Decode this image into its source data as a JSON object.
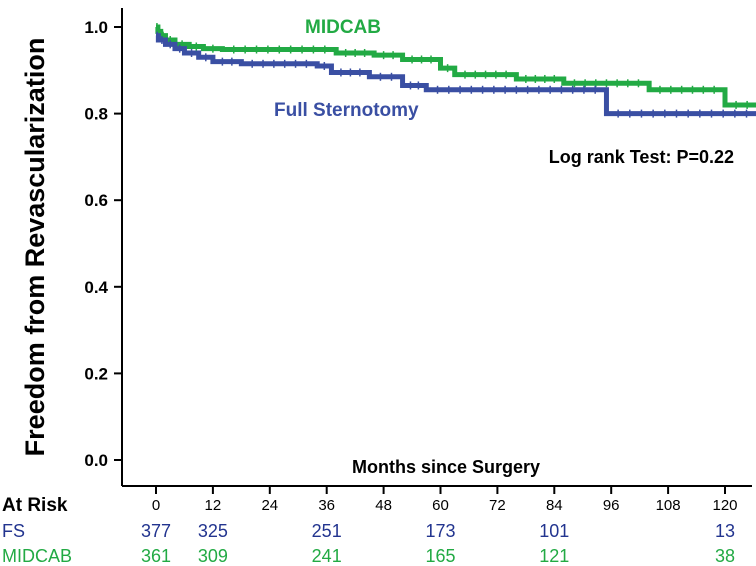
{
  "chart_data": {
    "type": "line",
    "subtype": "kaplan-meier",
    "title": "",
    "xlabel": "Months since Surgery",
    "ylabel": "Freedom from Revascularization",
    "xlim": [
      0,
      127
    ],
    "ylim": [
      0,
      1.05
    ],
    "x_ticks": [
      0,
      12,
      24,
      36,
      48,
      60,
      72,
      84,
      96,
      108,
      120
    ],
    "y_ticks": [
      0.0,
      0.2,
      0.4,
      0.6,
      0.8,
      1.0
    ],
    "y_tick_labels": [
      "0.0",
      "0.2",
      "0.4",
      "0.6",
      "0.8",
      "1.0"
    ],
    "annotation": "Log rank Test: P=0.22",
    "series": [
      {
        "name": "MIDCAB",
        "color": "#22aa44",
        "steps": [
          [
            0,
            1.0
          ],
          [
            0.4,
            0.99
          ],
          [
            1,
            0.98
          ],
          [
            2,
            0.97
          ],
          [
            4,
            0.96
          ],
          [
            7,
            0.955
          ],
          [
            10,
            0.95
          ],
          [
            14,
            0.948
          ],
          [
            38,
            0.94
          ],
          [
            46,
            0.935
          ],
          [
            52,
            0.925
          ],
          [
            60,
            0.905
          ],
          [
            63,
            0.89
          ],
          [
            76,
            0.88
          ],
          [
            86,
            0.87
          ],
          [
            104,
            0.855
          ],
          [
            120,
            0.82
          ],
          [
            127,
            0.82
          ]
        ],
        "at_risk": [
          361,
          309,
          241,
          165,
          121,
          38
        ]
      },
      {
        "name": "Full Sternotomy",
        "color": "#3a4fa3",
        "steps": [
          [
            0,
            0.98
          ],
          [
            0.5,
            0.97
          ],
          [
            2,
            0.96
          ],
          [
            4,
            0.95
          ],
          [
            6,
            0.94
          ],
          [
            9,
            0.93
          ],
          [
            12,
            0.92
          ],
          [
            18,
            0.915
          ],
          [
            34,
            0.91
          ],
          [
            37,
            0.895
          ],
          [
            45,
            0.885
          ],
          [
            52,
            0.865
          ],
          [
            57,
            0.855
          ],
          [
            95,
            0.8
          ],
          [
            127,
            0.8
          ]
        ],
        "at_risk": [
          377,
          325,
          251,
          173,
          101,
          13
        ]
      }
    ],
    "at_risk_table": {
      "title": "At Risk",
      "months": [
        0,
        12,
        36,
        60,
        84,
        120
      ],
      "rows": [
        {
          "label": "FS",
          "color": "#22348f",
          "values": [
            "377",
            "325",
            "251",
            "173",
            "101",
            "13"
          ]
        },
        {
          "label": "MIDCAB",
          "color": "#22aa44",
          "values": [
            "361",
            "309",
            "241",
            "165",
            "121",
            "38"
          ]
        }
      ]
    }
  }
}
